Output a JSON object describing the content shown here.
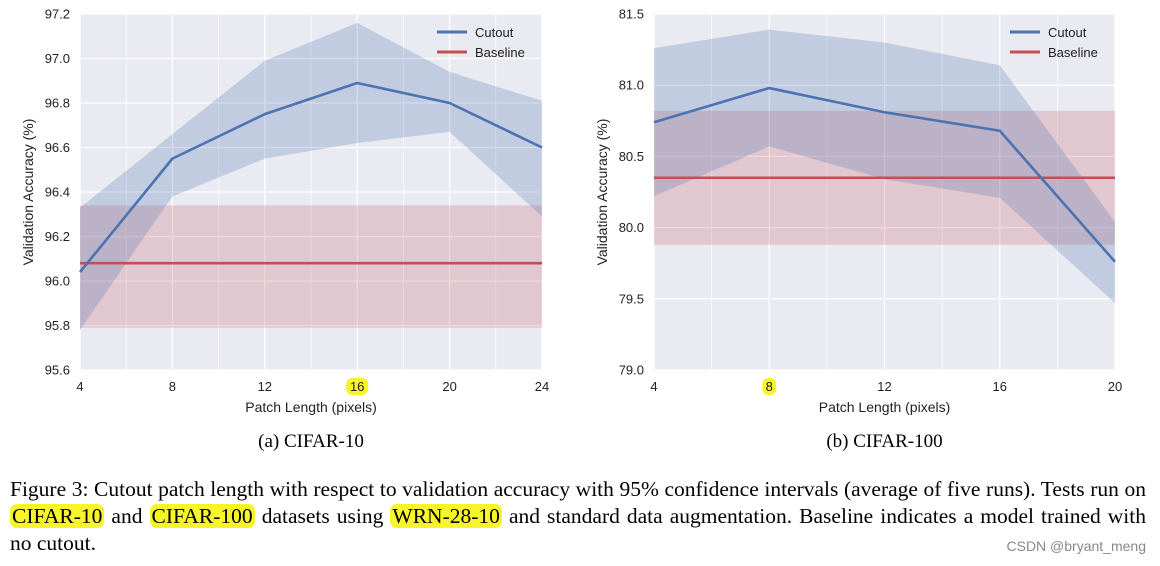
{
  "colors": {
    "plot_bg": "#eaeaf2",
    "grid": "#ffffff",
    "cutout": "#4c72b0",
    "baseline": "#c44e52",
    "highlight": "#f7f42a"
  },
  "chart_data": [
    {
      "type": "line",
      "title": "(a) CIFAR-10",
      "xlabel": "Patch Length (pixels)",
      "ylabel": "Validation Accuracy (%)",
      "x": [
        4,
        8,
        12,
        16,
        20,
        24
      ],
      "xlim": [
        4,
        24
      ],
      "xticks": [
        "4",
        "8",
        "12",
        "16",
        "20",
        "24"
      ],
      "highlighted_xtick": "16",
      "ylim": [
        95.6,
        97.2
      ],
      "yticks": [
        "95.6",
        "95.8",
        "96.0",
        "96.2",
        "96.4",
        "96.6",
        "96.8",
        "97.0",
        "97.2"
      ],
      "grid": true,
      "legend_position": "top-right",
      "series": [
        {
          "name": "Cutout",
          "values": [
            96.04,
            96.55,
            96.75,
            96.89,
            96.8,
            96.6
          ],
          "upper": [
            96.33,
            96.66,
            96.99,
            97.16,
            96.94,
            96.81
          ],
          "lower": [
            95.78,
            96.38,
            96.55,
            96.62,
            96.67,
            96.29
          ]
        },
        {
          "name": "Baseline",
          "values": [
            96.08,
            96.08,
            96.08,
            96.08,
            96.08,
            96.08
          ],
          "upper": [
            96.34,
            96.34,
            96.34,
            96.34,
            96.34,
            96.34
          ],
          "lower": [
            95.79,
            95.79,
            95.79,
            95.79,
            95.79,
            95.79
          ]
        }
      ]
    },
    {
      "type": "line",
      "title": "(b) CIFAR-100",
      "xlabel": "Patch Length (pixels)",
      "ylabel": "Validation Accuracy (%)",
      "x": [
        4,
        8,
        12,
        16,
        20
      ],
      "xlim": [
        4,
        20
      ],
      "xticks": [
        "4",
        "8",
        "12",
        "16",
        "20"
      ],
      "highlighted_xtick": "8",
      "ylim": [
        79.0,
        81.5
      ],
      "yticks": [
        "79.0",
        "79.5",
        "80.0",
        "80.5",
        "81.0",
        "81.5"
      ],
      "grid": true,
      "legend_position": "top-right",
      "series": [
        {
          "name": "Cutout",
          "values": [
            80.74,
            80.98,
            80.81,
            80.68,
            79.76
          ],
          "upper": [
            81.26,
            81.39,
            81.3,
            81.14,
            80.04
          ],
          "lower": [
            80.22,
            80.57,
            80.34,
            80.21,
            79.47
          ]
        },
        {
          "name": "Baseline",
          "values": [
            80.35,
            80.35,
            80.35,
            80.35,
            80.35
          ],
          "upper": [
            80.82,
            80.82,
            80.82,
            80.82,
            80.82
          ],
          "lower": [
            79.88,
            79.88,
            79.88,
            79.88,
            79.88
          ]
        }
      ]
    }
  ],
  "caption": {
    "part1": "Figure 3: Cutout patch length with respect to validation accuracy with 95% confidence intervals (average of five runs). Tests run on ",
    "hl1": "CIFAR-10",
    "part2": " and ",
    "hl2": "CIFAR-100",
    "part3": " datasets using ",
    "hl3": "WRN-28-10",
    "part4": " and standard data augmentation.  Baseline indicates a model trained with no cutout."
  },
  "watermark": "CSDN @bryant_meng"
}
